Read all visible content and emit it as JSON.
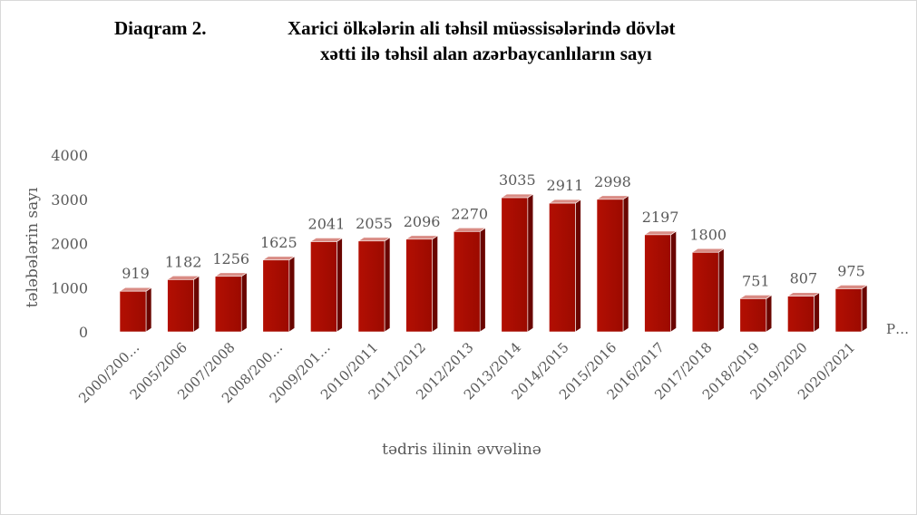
{
  "title": {
    "label": "Diaqram 2.",
    "line1": "Xarici ölkələrin ali təhsil müəssisələrində dövlət",
    "line2": "xətti ilə təhsil alan azərbaycanlıların   sayı"
  },
  "chart_data": {
    "type": "bar",
    "xlabel": "tədris ilinin əvvəlinə",
    "ylabel": "tələbələrin sayı",
    "ylim": [
      0,
      4000
    ],
    "yticks": [
      "0",
      "1000",
      "2000",
      "3000",
      "4000"
    ],
    "categories": [
      "2000/200…",
      "2005/2006",
      "2007/2008",
      "2008/200…",
      "2009/201…",
      "2010/2011",
      "2011/2012",
      "2012/2013",
      "2013/2014",
      "2014/2015",
      "2015/2016",
      "2016/2017",
      "2017/2018",
      "2018/2019",
      "2019/2020",
      "2020/2021"
    ],
    "values": [
      919,
      1182,
      1256,
      1625,
      2041,
      2055,
      2096,
      2270,
      3035,
      2911,
      2998,
      2197,
      1800,
      751,
      807,
      975
    ],
    "legend_entry": "P…",
    "bar_color": "#a90c00",
    "grid": false,
    "style": "3d-column"
  }
}
